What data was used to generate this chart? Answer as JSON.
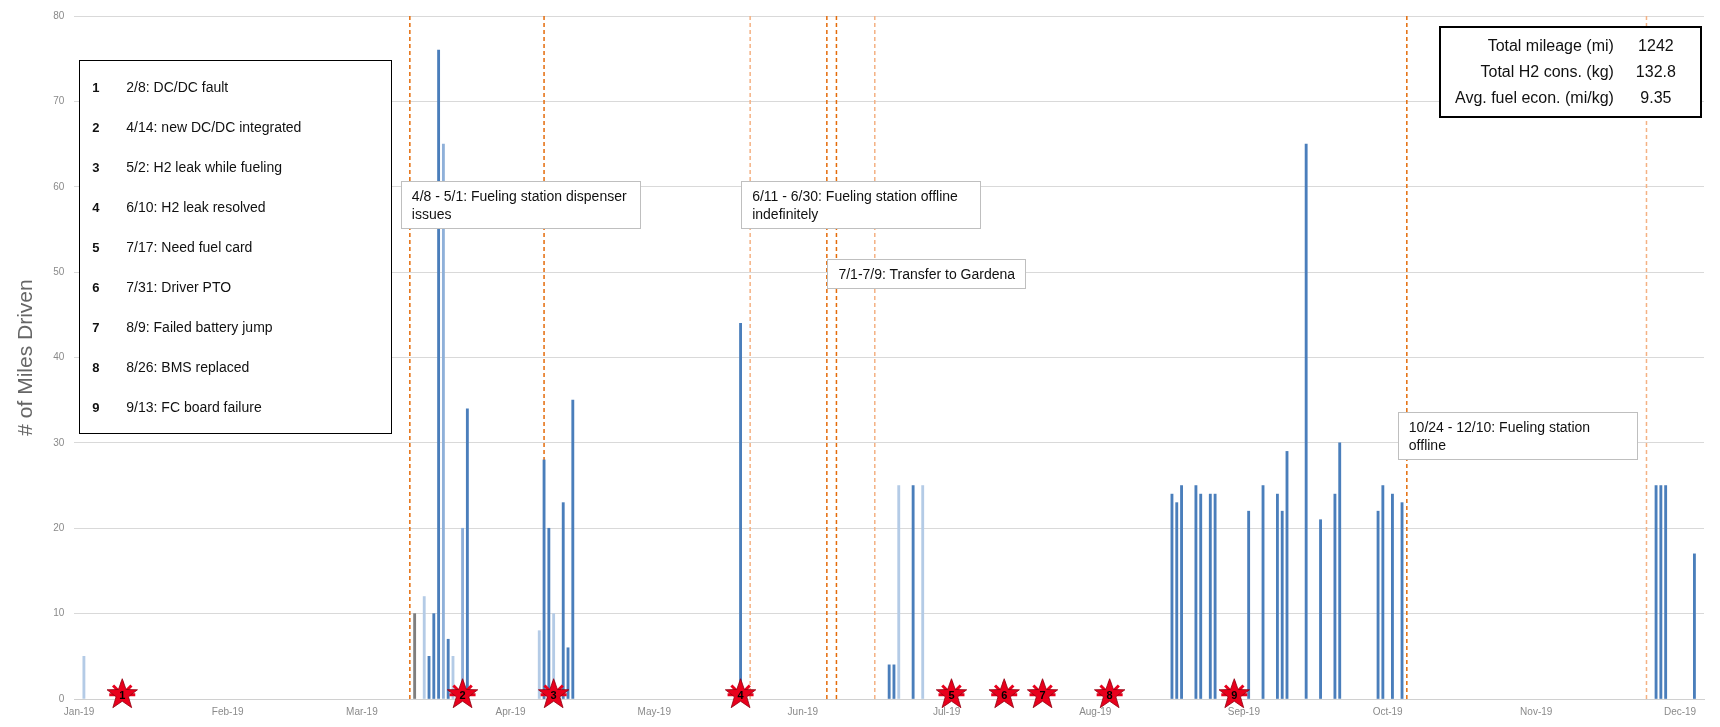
{
  "chart_data": {
    "type": "bar",
    "ylabel": "# of Miles Driven",
    "grid": "y",
    "legend": false,
    "xlim": [
      "2018-12-31",
      "2019-12-06"
    ],
    "xticks": [
      {
        "value": "2019-01-01",
        "label": "Jan-19"
      },
      {
        "value": "2019-02-01",
        "label": "Feb-19"
      },
      {
        "value": "2019-03-01",
        "label": "Mar-19"
      },
      {
        "value": "2019-04-01",
        "label": "Apr-19"
      },
      {
        "value": "2019-05-01",
        "label": "May-19"
      },
      {
        "value": "2019-06-01",
        "label": "Jun-19"
      },
      {
        "value": "2019-07-01",
        "label": "Jul-19"
      },
      {
        "value": "2019-08-01",
        "label": "Aug-19"
      },
      {
        "value": "2019-09-01",
        "label": "Sep-19"
      },
      {
        "value": "2019-10-01",
        "label": "Oct-19"
      },
      {
        "value": "2019-11-01",
        "label": "Nov-19"
      },
      {
        "value": "2019-12-01",
        "label": "Dec-19"
      }
    ],
    "ylim": [
      0,
      80
    ],
    "yticks": [
      0,
      10,
      20,
      30,
      40,
      50,
      60,
      70,
      80
    ],
    "series": [
      {
        "x": [
          "2019-01-02",
          "2019-03-12",
          "2019-03-14",
          "2019-03-15",
          "2019-03-16",
          "2019-03-17",
          "2019-03-18",
          "2019-03-19",
          "2019-03-20",
          "2019-03-22",
          "2019-03-23",
          "2019-04-07",
          "2019-04-08",
          "2019-04-09",
          "2019-04-10",
          "2019-04-12",
          "2019-04-13",
          "2019-04-14",
          "2019-05-19",
          "2019-06-19",
          "2019-06-20",
          "2019-06-21",
          "2019-06-24",
          "2019-06-26",
          "2019-08-17",
          "2019-08-18",
          "2019-08-19",
          "2019-08-22",
          "2019-08-23",
          "2019-08-25",
          "2019-08-26",
          "2019-09-02",
          "2019-09-05",
          "2019-09-08",
          "2019-09-09",
          "2019-09-10",
          "2019-09-14",
          "2019-09-17",
          "2019-09-20",
          "2019-09-21",
          "2019-09-29",
          "2019-09-30",
          "2019-10-02",
          "2019-10-04",
          "2019-11-26",
          "2019-11-27",
          "2019-11-28",
          "2019-12-04"
        ],
        "values": [
          5,
          10,
          12,
          5,
          10,
          76,
          65,
          7,
          5,
          20,
          34,
          8,
          28,
          20,
          10,
          23,
          6,
          35,
          44,
          4,
          4,
          25,
          25,
          25,
          24,
          23,
          25,
          25,
          24,
          24,
          24,
          22,
          25,
          24,
          22,
          29,
          65,
          21,
          24,
          30,
          22,
          25,
          24,
          23,
          25,
          25,
          25,
          17
        ],
        "colors": [
          "#b4cbe6",
          "#7f7f7f",
          "#b4cbe6",
          "#4a7ebb",
          "#4a7ebb",
          "#4a7ebb",
          "#8fb0d9",
          "#4a7ebb",
          "#b4cbe6",
          "#8fb0d9",
          "#4a7ebb",
          "#b4cbe6",
          "#4a7ebb",
          "#4a7ebb",
          "#b4cbe6",
          "#4a7ebb",
          "#4a7ebb",
          "#4a7ebb",
          "#4a7ebb",
          "#4a7ebb",
          "#4a7ebb",
          "#b4cbe6",
          "#4a7ebb",
          "#b4cbe6",
          "#4a7ebb",
          "#4a7ebb",
          "#4a7ebb",
          "#4a7ebb",
          "#4a7ebb",
          "#4a7ebb",
          "#4a7ebb",
          "#4a7ebb",
          "#4a7ebb",
          "#4a7ebb",
          "#4a7ebb",
          "#4a7ebb",
          "#4a7ebb",
          "#4a7ebb",
          "#4a7ebb",
          "#4a7ebb",
          "#4a7ebb",
          "#4a7ebb",
          "#4a7ebb",
          "#4a7ebb",
          "#4a7ebb",
          "#4a7ebb",
          "#4a7ebb",
          "#4a7ebb"
        ]
      },
      {
        "type": "scatter",
        "marker": "star",
        "color": "#e8001c",
        "x": [
          "2019-01-10",
          "2019-03-22",
          "2019-04-10",
          "2019-05-19",
          "2019-07-02",
          "2019-07-13",
          "2019-07-21",
          "2019-08-04",
          "2019-08-30"
        ],
        "values": [
          0.5,
          0.5,
          0.5,
          0.5,
          0.5,
          0.5,
          0.5,
          0.5,
          0.5
        ]
      }
    ],
    "ref_lines": [
      {
        "axis": "x",
        "value": "2019-03-11",
        "color": "#e46c0a",
        "line_style": "dashed"
      },
      {
        "axis": "x",
        "value": "2019-04-08",
        "color": "#e46c0a",
        "line_style": "dashed"
      },
      {
        "axis": "x",
        "value": "2019-05-21",
        "color": "#f4b183",
        "line_style": "dashed"
      },
      {
        "axis": "x",
        "value": "2019-06-06",
        "color": "#e46c0a",
        "line_style": "dashed"
      },
      {
        "axis": "x",
        "value": "2019-06-08",
        "color": "#e46c0a",
        "line_style": "dashed"
      },
      {
        "axis": "x",
        "value": "2019-06-16",
        "color": "#f4b183",
        "line_style": "dashed"
      },
      {
        "axis": "x",
        "value": "2019-10-05",
        "color": "#e46c0a",
        "line_style": "dashed"
      },
      {
        "axis": "x",
        "value": "2019-11-24",
        "color": "#f4b183",
        "line_style": "dashed"
      }
    ],
    "annotations": [
      "1\t2/8: DC/DC fault",
      "2\t4/14: new DC/DC integrated",
      "3\t5/2: H2 leak while fueling",
      "4\t6/10: H2 leak resolved",
      "5\t7/17: Need fuel card",
      "6\t7/31: Driver PTO",
      "7\t8/9: Failed battery jump",
      "8\t8/26: BMS replaced",
      "9\t9/13: FC board failure",
      "Total mileage (mi)\t1242",
      "Total H2 cons. (kg)\t132.8",
      "Avg. fuel econ. (mi/kg)\t9.35",
      {
        "text": "4/8 - 5/1: Fueling station dispenser issues",
        "x": "2019-03-11",
        "y": 55
      },
      {
        "text": "6/11 - 6/30: Fueling station offline indefinitely",
        "x": "2019-05-21",
        "y": 55
      },
      {
        "text": "7/1-7/9: Transfer to Gardena",
        "x": "2019-06-08",
        "y": 48
      },
      {
        "text": "10/24 - 12/10: Fueling station offline",
        "x": "2019-10-05",
        "y": 28
      },
      {
        "text": "1",
        "x": "2019-01-10",
        "y": 0.5
      },
      {
        "text": "2",
        "x": "2019-03-22",
        "y": 0.5
      },
      {
        "text": "3",
        "x": "2019-04-10",
        "y": 0.5
      },
      {
        "text": "4",
        "x": "2019-05-19",
        "y": 0.5
      },
      {
        "text": "5",
        "x": "2019-07-02",
        "y": 0.5
      },
      {
        "text": "6",
        "x": "2019-07-13",
        "y": 0.5
      },
      {
        "text": "7",
        "x": "2019-07-21",
        "y": 0.5
      },
      {
        "text": "8",
        "x": "2019-08-04",
        "y": 0.5
      },
      {
        "text": "9",
        "x": "2019-08-30",
        "y": 0.5
      }
    ]
  }
}
